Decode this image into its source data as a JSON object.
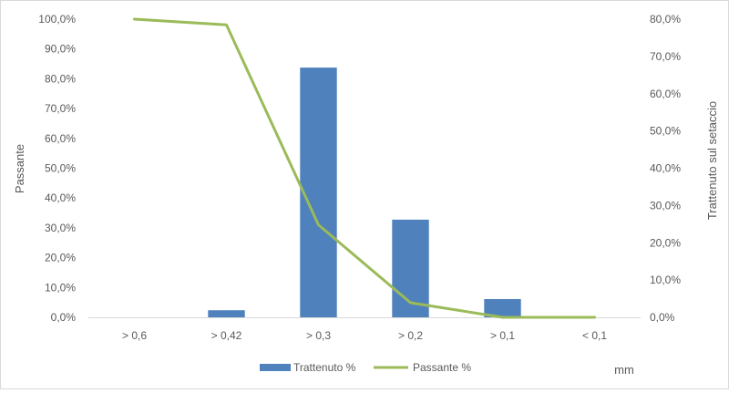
{
  "chart_data": {
    "type": "bar+line",
    "categories": [
      "> 0,6",
      "> 0,42",
      "> 0,3",
      "> 0,2",
      "> 0,1",
      "< 0,1"
    ],
    "series": [
      {
        "name": "Trattenuto %",
        "type": "bar",
        "axis": "right",
        "color": "#4f81bd",
        "values": [
          0.0,
          1.9,
          67.0,
          26.2,
          4.9,
          0.0
        ]
      },
      {
        "name": "Passante %",
        "type": "line",
        "axis": "left",
        "color": "#9bbb59",
        "values": [
          100.0,
          98.1,
          31.0,
          4.9,
          0.0,
          0.0
        ]
      }
    ],
    "left_axis": {
      "title": "Passante",
      "ylim": [
        0,
        100
      ],
      "tick_labels": [
        "0,0%",
        "10,0%",
        "20,0%",
        "30,0%",
        "40,0%",
        "50,0%",
        "60,0%",
        "70,0%",
        "80,0%",
        "90,0%",
        "100,0%"
      ]
    },
    "right_axis": {
      "title": "Trattenuto sul setaccio",
      "ylim": [
        0,
        80
      ],
      "tick_labels": [
        "0,0%",
        "10,0%",
        "20,0%",
        "30,0%",
        "40,0%",
        "50,0%",
        "60,0%",
        "70,0%",
        "80,0%"
      ]
    },
    "xlabel": "mm",
    "grid": false,
    "legend_position": "bottom"
  }
}
